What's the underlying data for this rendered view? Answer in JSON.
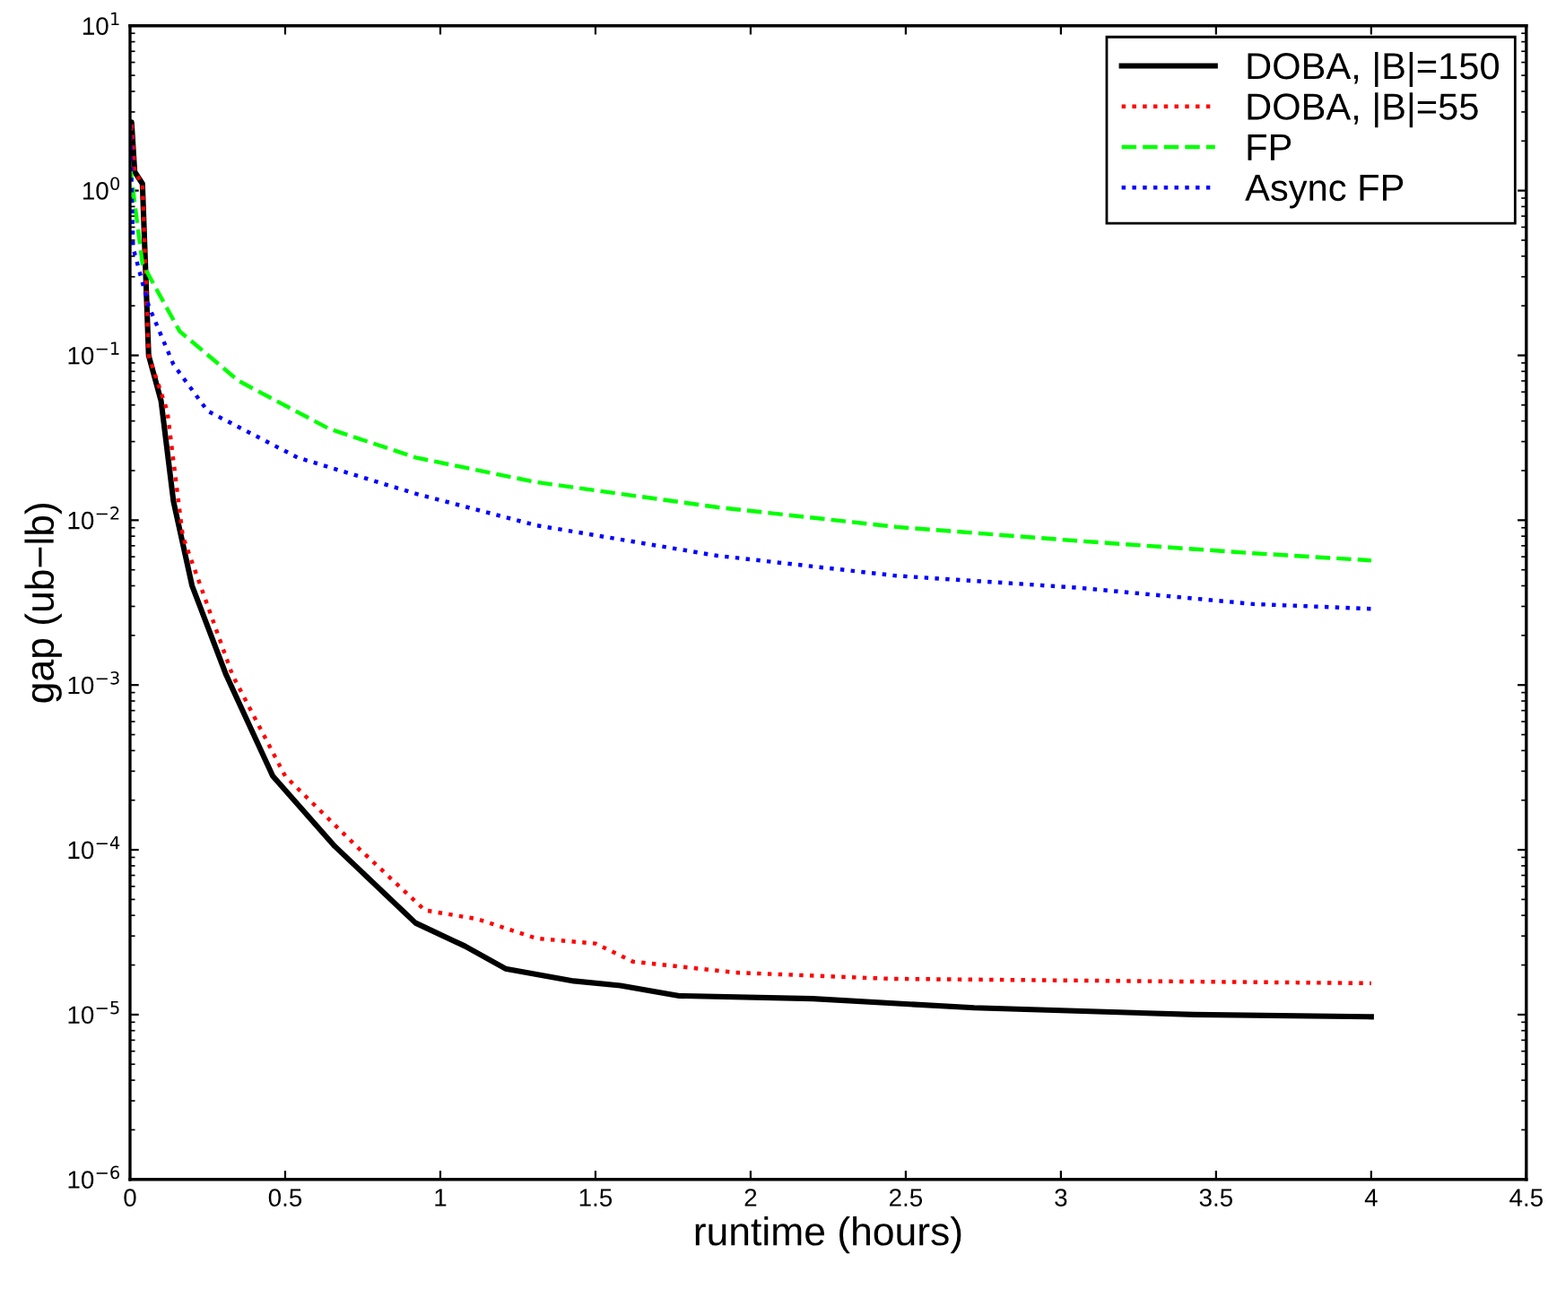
{
  "chart_data": {
    "type": "line",
    "xlabel": "runtime (hours)",
    "ylabel": "gap (ub−lb)",
    "log": "y",
    "grid": false,
    "legend": "top right",
    "marker": "none",
    "xlim": [
      0,
      4.5
    ],
    "xticks": [
      0,
      0.5,
      1,
      1.5,
      2,
      2.5,
      3,
      3.5,
      4,
      4.5
    ],
    "ylim": [
      1e-06,
      10
    ],
    "yticks": [
      {
        "value": 1e-06,
        "label": "10$^{−6}$"
      },
      {
        "value": 1e-05,
        "label": "10$^{−5}$"
      },
      {
        "value": 0.0001,
        "label": "10$^{−4}$"
      },
      {
        "value": 0.001,
        "label": "10$^{−3}$"
      },
      {
        "value": 0.01,
        "label": "10$^{−2}$"
      },
      {
        "value": 0.1,
        "label": "10$^{−1}$"
      },
      {
        "value": 1,
        "label": "10$^{0}$"
      },
      {
        "value": 10,
        "label": "10$^{1}$"
      }
    ],
    "series": [
      {
        "name": "DOBA, |B|=150",
        "color": "#000000",
        "line_style": "solid",
        "x": [
          0,
          0.005,
          0.015,
          0.04,
          0.06,
          0.1,
          0.14,
          0.2,
          0.31,
          0.46,
          0.66,
          0.92,
          1.08,
          1.21,
          1.43,
          1.58,
          1.77,
          2.2,
          2.72,
          3.43,
          4.0
        ],
        "values": [
          2.0,
          2.6,
          1.3,
          1.1,
          0.1,
          0.053,
          0.013,
          0.004,
          0.00115,
          0.00028,
          0.000105,
          3.6e-05,
          2.6e-05,
          1.9e-05,
          1.6e-05,
          1.5e-05,
          1.3e-05,
          1.25e-05,
          1.1e-05,
          1e-05,
          9.7e-06
        ]
      },
      {
        "name": "DOBA, |B|=55",
        "color": "#ff0000",
        "line_style": "dotted",
        "x": [
          0,
          0.005,
          0.015,
          0.04,
          0.06,
          0.12,
          0.17,
          0.33,
          0.5,
          0.73,
          0.95,
          1.12,
          1.31,
          1.5,
          1.62,
          1.95,
          2.45,
          4.0
        ],
        "values": [
          2.0,
          2.6,
          1.3,
          1.1,
          0.1,
          0.046,
          0.008,
          0.00115,
          0.00028,
          0.000105,
          4.3e-05,
          3.8e-05,
          2.9e-05,
          2.7e-05,
          2.1e-05,
          1.8e-05,
          1.65e-05,
          1.55e-05
        ]
      },
      {
        "name": "FP",
        "color": "#00ff00",
        "line_style": "dashed",
        "x": [
          0,
          0.04,
          0.16,
          0.35,
          0.64,
          0.92,
          1.31,
          1.89,
          2.47,
          3.05,
          3.62,
          4.0
        ],
        "values": [
          1.4,
          0.36,
          0.14,
          0.07,
          0.036,
          0.024,
          0.017,
          0.012,
          0.0091,
          0.0075,
          0.0063,
          0.0057
        ]
      },
      {
        "name": "Async FP",
        "color": "#0000ff",
        "line_style": "dotted",
        "x": [
          0,
          0.01,
          0.06,
          0.14,
          0.25,
          0.54,
          0.92,
          1.31,
          1.89,
          2.47,
          3.05,
          3.62,
          4.0
        ],
        "values": [
          2.5,
          0.45,
          0.2,
          0.088,
          0.046,
          0.024,
          0.0145,
          0.0093,
          0.0061,
          0.0046,
          0.0039,
          0.0031,
          0.0029
        ]
      }
    ]
  }
}
